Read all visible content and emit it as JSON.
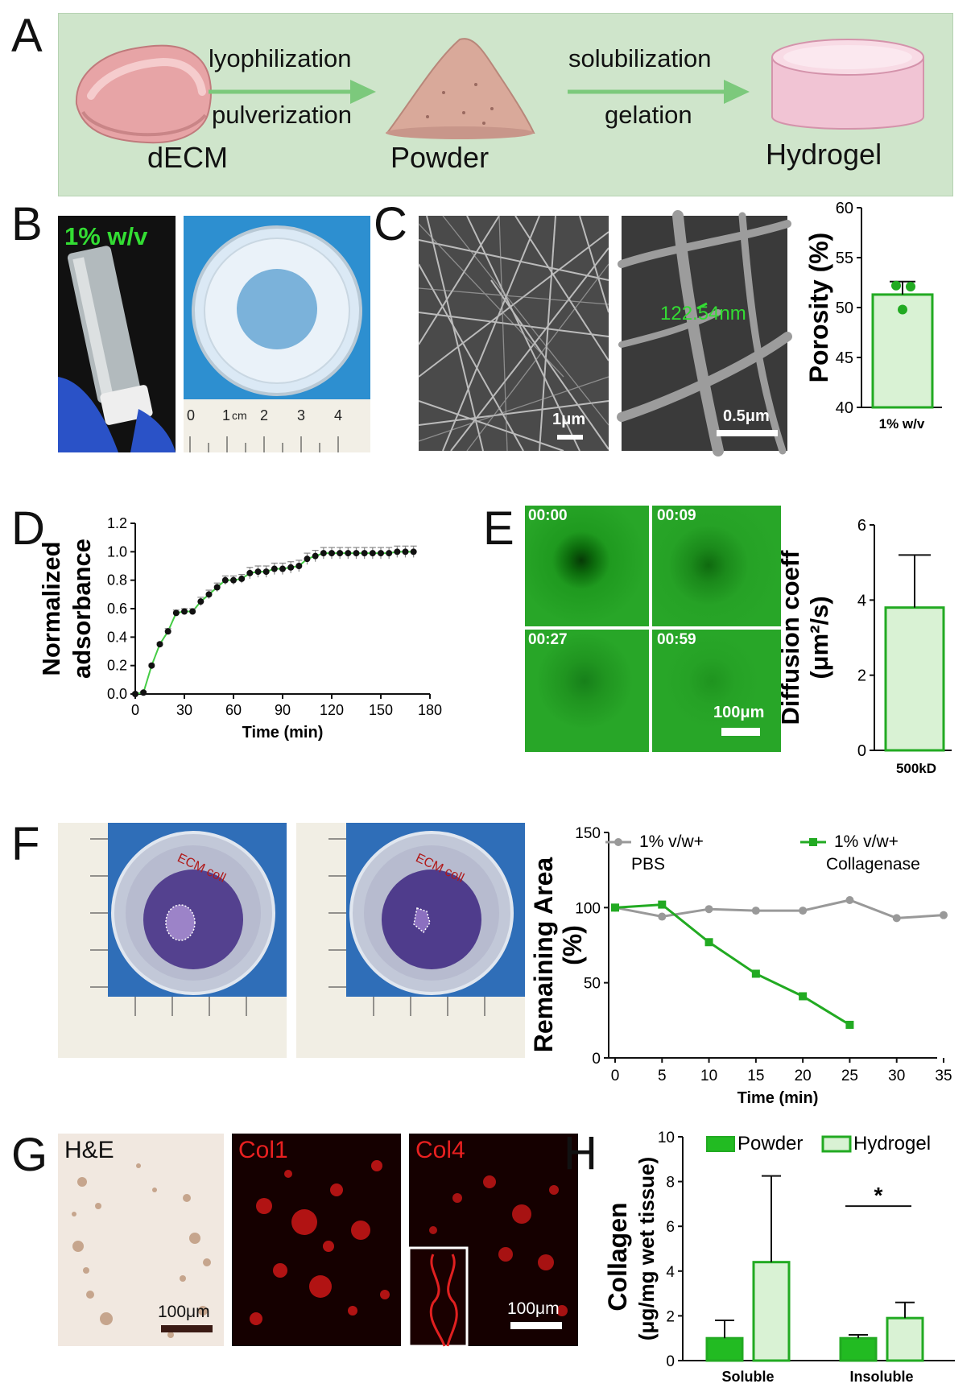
{
  "panels": {
    "A": "A",
    "B": "B",
    "C": "C",
    "D": "D",
    "E": "E",
    "F": "F",
    "G": "G",
    "H": "H"
  },
  "panel_a": {
    "step1_top": "lyophilization",
    "step1_bottom": "pulverization",
    "step2_top": "solubilization",
    "step2_bottom": "gelation",
    "stage1": "dECM",
    "stage2": "Powder",
    "stage3": "Hydrogel",
    "colors": {
      "banner": "#cfe5cb",
      "arrow": "#7cc97c",
      "tissue": "#e7a4a6"
    }
  },
  "panel_b": {
    "vial_label": "1% w/v",
    "ruler_ticks": [
      "0",
      "1",
      "cm",
      "2",
      "3",
      "4"
    ]
  },
  "panel_c": {
    "scale1": "1μm",
    "measure": "122.54nm",
    "scale2": "0.5μm"
  },
  "panel_e": {
    "times": [
      "00:00",
      "00:09",
      "00:27",
      "00:59"
    ],
    "scale": "100μm"
  },
  "panel_f": {
    "dish_text1": "ECM coll",
    "dish_text2": "ECM coll"
  },
  "panel_g": {
    "labels": [
      "H&E",
      "Col1",
      "Col4"
    ],
    "scale1": "100μm",
    "scale2": "100μm"
  },
  "chart_data": [
    {
      "id": "C",
      "type": "bar",
      "categories": [
        "1% w/v"
      ],
      "values": [
        51.3
      ],
      "error": [
        1.3
      ],
      "points": [
        52.2,
        52.1,
        49.8
      ],
      "ylabel": "Porosity (%)",
      "ylim": [
        40,
        60
      ],
      "yticks": [
        40,
        45,
        50,
        55,
        60
      ]
    },
    {
      "id": "D",
      "type": "line",
      "xlabel": "Time (min)",
      "ylabel_lines": [
        "Normalized",
        "adsorbance"
      ],
      "xlim": [
        0,
        180
      ],
      "ylim": [
        0,
        1.2
      ],
      "xticks": [
        0,
        30,
        60,
        90,
        120,
        150,
        180
      ],
      "yticks": [
        "0.0",
        "0.2",
        "0.4",
        "0.6",
        "0.8",
        "1.0",
        "1.2"
      ],
      "x": [
        0,
        5,
        10,
        15,
        20,
        25,
        30,
        35,
        40,
        45,
        50,
        55,
        60,
        65,
        70,
        75,
        80,
        85,
        90,
        95,
        100,
        105,
        110,
        115,
        120,
        125,
        130,
        135,
        140,
        145,
        150,
        155,
        160,
        165,
        170
      ],
      "y": [
        0.0,
        0.01,
        0.2,
        0.35,
        0.44,
        0.57,
        0.58,
        0.58,
        0.65,
        0.7,
        0.75,
        0.8,
        0.8,
        0.81,
        0.85,
        0.86,
        0.86,
        0.88,
        0.88,
        0.89,
        0.9,
        0.95,
        0.97,
        0.99,
        0.99,
        0.99,
        0.99,
        0.99,
        0.99,
        0.99,
        0.99,
        0.99,
        1.0,
        1.0,
        1.0
      ],
      "error": [
        0.01,
        0.01,
        0.01,
        0.01,
        0.02,
        0.02,
        0.02,
        0.02,
        0.03,
        0.03,
        0.03,
        0.03,
        0.03,
        0.03,
        0.04,
        0.04,
        0.04,
        0.04,
        0.04,
        0.04,
        0.04,
        0.04,
        0.04,
        0.04,
        0.04,
        0.04,
        0.04,
        0.04,
        0.04,
        0.04,
        0.04,
        0.04,
        0.04,
        0.04,
        0.04
      ]
    },
    {
      "id": "E",
      "type": "bar",
      "categories": [
        "500kD"
      ],
      "values": [
        3.8
      ],
      "error": [
        1.4
      ],
      "ylabel_lines": [
        "Diffusion coeff",
        "(μm²/s)"
      ],
      "ylim": [
        0,
        6
      ],
      "yticks": [
        0,
        2,
        4,
        6
      ]
    },
    {
      "id": "F",
      "type": "line",
      "xlabel": "Time (min)",
      "ylabel_lines": [
        "Remaining Area",
        "(%)"
      ],
      "xlim": [
        0,
        35
      ],
      "ylim": [
        0,
        150
      ],
      "xticks": [
        0,
        5,
        10,
        15,
        20,
        25,
        30,
        35
      ],
      "yticks": [
        0,
        50,
        100,
        150
      ],
      "series": [
        {
          "name": "1% v/w+ PBS",
          "name_lines": [
            "1% v/w+",
            "PBS"
          ],
          "color": "#999999",
          "x": [
            0,
            5,
            10,
            15,
            20,
            25,
            30,
            35
          ],
          "y": [
            100,
            94,
            99,
            98,
            98,
            105,
            93,
            95
          ]
        },
        {
          "name": "1% v/w+ Collagenase",
          "name_lines": [
            "1% v/w+",
            "Collagenase"
          ],
          "color": "#22aa22",
          "x": [
            0,
            5,
            10,
            15,
            20,
            25
          ],
          "y": [
            100,
            102,
            77,
            56,
            41,
            22
          ]
        }
      ]
    },
    {
      "id": "H",
      "type": "bar",
      "categories": [
        "Soluble",
        "Insoluble"
      ],
      "ylabel_lines": [
        "Collagen",
        "(μg/mg wet tissue)"
      ],
      "ylim": [
        0,
        10
      ],
      "yticks": [
        0,
        2,
        4,
        6,
        8,
        10
      ],
      "series": [
        {
          "name": "Powder",
          "values": [
            1.0,
            1.0
          ],
          "error": [
            0.8,
            0.15
          ]
        },
        {
          "name": "Hydrogel",
          "values": [
            4.4,
            1.9
          ],
          "error": [
            3.85,
            0.7
          ]
        }
      ],
      "annotation": "*"
    }
  ]
}
